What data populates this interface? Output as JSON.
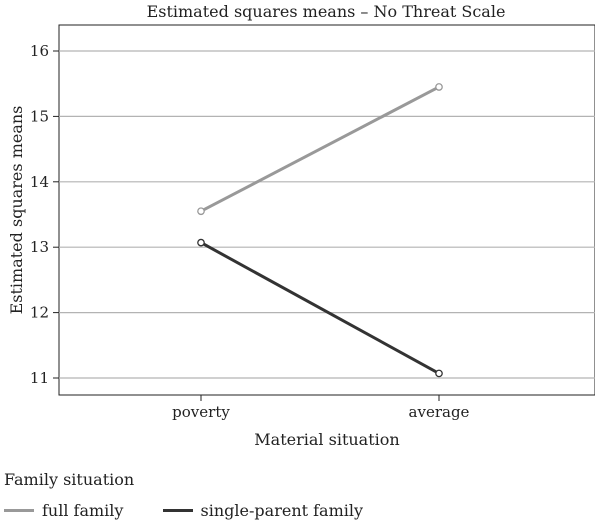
{
  "chart_data": {
    "type": "line",
    "title": "Estimated squares means – No Threat Scale",
    "xlabel": "Material situation",
    "ylabel": "Estimated squares means",
    "categories": [
      "poverty",
      "average"
    ],
    "ylim": [
      10.8,
      16.2
    ],
    "yticks": [
      11,
      12,
      13,
      14,
      15,
      16
    ],
    "grid": true,
    "legend": {
      "title": "Family situation",
      "placement": "bottom-left"
    },
    "series": [
      {
        "name": "full family",
        "values": [
          13.55,
          15.45
        ],
        "color": "#999999"
      },
      {
        "name": "single-parent family",
        "values": [
          13.07,
          11.07
        ],
        "color": "#333333"
      }
    ]
  }
}
